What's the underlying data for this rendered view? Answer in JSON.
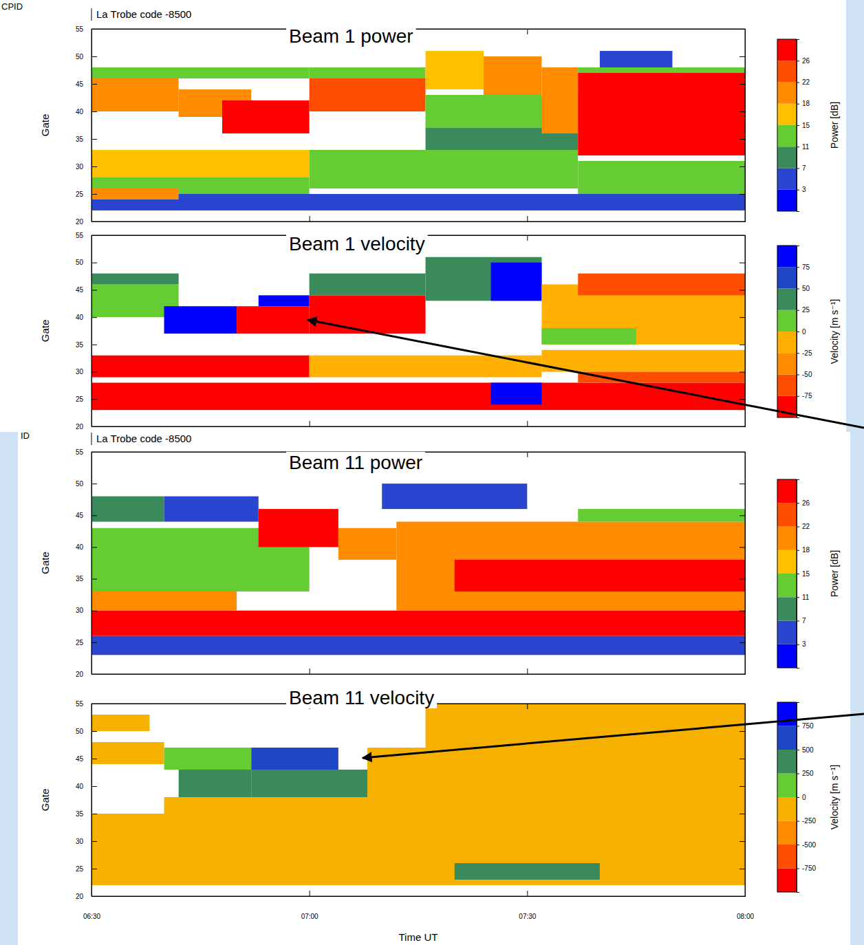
{
  "headers": [
    {
      "id": "CPID",
      "code": "La Trobe code -8500"
    },
    {
      "id": "ID",
      "code": "La Trobe code -8500"
    }
  ],
  "chart_data": [
    {
      "type": "heatmap",
      "title": "Beam 1 power",
      "ylabel": "Gate",
      "xlim": [
        390,
        480
      ],
      "xticks": [
        {
          "value": 390,
          "label": "06:30"
        },
        {
          "value": 420,
          "label": "07:00"
        },
        {
          "value": 450,
          "label": "07:30"
        },
        {
          "value": 480,
          "label": "08:00"
        }
      ],
      "ylim": [
        20,
        55
      ],
      "yticks": [
        20,
        25,
        30,
        35,
        40,
        45,
        50,
        55
      ],
      "tick_labels": "y",
      "colorbar": {
        "label": "Power [dB]",
        "ticks": [
          3,
          7,
          11,
          15,
          18,
          22,
          26
        ],
        "colors": [
          "#0000ff",
          "#2a46d0",
          "#3a8a5c",
          "#66cc33",
          "#ffc000",
          "#ff8c00",
          "#ff4d00",
          "#ff0000"
        ]
      },
      "cells": [
        {
          "t": [
            390,
            480
          ],
          "gate": [
            22,
            25
          ],
          "value": 5
        },
        {
          "t": [
            390,
            420
          ],
          "gate": [
            25,
            28
          ],
          "value": 12
        },
        {
          "t": [
            390,
            402
          ],
          "gate": [
            24,
            26
          ],
          "value": 18
        },
        {
          "t": [
            390,
            420
          ],
          "gate": [
            28,
            33
          ],
          "value": 16
        },
        {
          "t": [
            420,
            457
          ],
          "gate": [
            26,
            33
          ],
          "value": 11
        },
        {
          "t": [
            457,
            480
          ],
          "gate": [
            25,
            31
          ],
          "value": 11
        },
        {
          "t": [
            390,
            420
          ],
          "gate": [
            46,
            48
          ],
          "value": 12
        },
        {
          "t": [
            390,
            402
          ],
          "gate": [
            40,
            46
          ],
          "value": 18
        },
        {
          "t": [
            402,
            412
          ],
          "gate": [
            39,
            44
          ],
          "value": 20
        },
        {
          "t": [
            408,
            420
          ],
          "gate": [
            36,
            42
          ],
          "value": 27
        },
        {
          "t": [
            420,
            436
          ],
          "gate": [
            40,
            46
          ],
          "value": 24
        },
        {
          "t": [
            420,
            436
          ],
          "gate": [
            46,
            48
          ],
          "value": 13
        },
        {
          "t": [
            436,
            457
          ],
          "gate": [
            37,
            43
          ],
          "value": 13
        },
        {
          "t": [
            436,
            457
          ],
          "gate": [
            33,
            37
          ],
          "value": 9
        },
        {
          "t": [
            436,
            444
          ],
          "gate": [
            44,
            51
          ],
          "value": 16
        },
        {
          "t": [
            444,
            452
          ],
          "gate": [
            43,
            50
          ],
          "value": 19
        },
        {
          "t": [
            452,
            457
          ],
          "gate": [
            36,
            48
          ],
          "value": 18
        },
        {
          "t": [
            457,
            480
          ],
          "gate": [
            47,
            48
          ],
          "value": 12
        },
        {
          "t": [
            457,
            480
          ],
          "gate": [
            42,
            47
          ],
          "value": 27
        },
        {
          "t": [
            457,
            480
          ],
          "gate": [
            32,
            42
          ],
          "value": 28
        },
        {
          "t": [
            460,
            470
          ],
          "gate": [
            48,
            51
          ],
          "value": 5
        }
      ]
    },
    {
      "type": "heatmap",
      "title": "Beam 1 velocity",
      "ylabel": "Gate",
      "xlim": [
        390,
        480
      ],
      "xticks": [
        {
          "value": 390,
          "label": "06:30"
        },
        {
          "value": 420,
          "label": "07:00"
        },
        {
          "value": 450,
          "label": "07:30"
        },
        {
          "value": 480,
          "label": "08:00"
        }
      ],
      "ylim": [
        20,
        55
      ],
      "yticks": [
        20,
        25,
        30,
        35,
        40,
        45,
        50,
        55
      ],
      "tick_labels": "y",
      "colorbar": {
        "label": "Velocity [m s⁻¹]",
        "ticks": [
          -75,
          -50,
          -25,
          0,
          25,
          50,
          75
        ],
        "colors": [
          "#ff0000",
          "#ff4d00",
          "#ff8c00",
          "#ffb000",
          "#66cc33",
          "#3a8a5c",
          "#2046c8",
          "#0000ff"
        ]
      },
      "cells": [
        {
          "t": [
            390,
            480
          ],
          "gate": [
            23,
            28
          ],
          "value": -85
        },
        {
          "t": [
            390,
            420
          ],
          "gate": [
            29,
            33
          ],
          "value": -80
        },
        {
          "t": [
            420,
            452
          ],
          "gate": [
            29,
            33
          ],
          "value": -20
        },
        {
          "t": [
            452,
            480
          ],
          "gate": [
            30,
            34
          ],
          "value": -10
        },
        {
          "t": [
            457,
            480
          ],
          "gate": [
            28,
            30
          ],
          "value": -60
        },
        {
          "t": [
            445,
            452
          ],
          "gate": [
            24,
            28
          ],
          "value": 80
        },
        {
          "t": [
            390,
            402
          ],
          "gate": [
            40,
            46
          ],
          "value": 10
        },
        {
          "t": [
            390,
            402
          ],
          "gate": [
            46,
            48
          ],
          "value": 30
        },
        {
          "t": [
            400,
            410
          ],
          "gate": [
            37,
            42
          ],
          "value": 80
        },
        {
          "t": [
            410,
            420
          ],
          "gate": [
            37,
            42
          ],
          "value": -85
        },
        {
          "t": [
            413,
            420
          ],
          "gate": [
            42,
            44
          ],
          "value": 80
        },
        {
          "t": [
            420,
            436
          ],
          "gate": [
            37,
            44
          ],
          "value": -85
        },
        {
          "t": [
            420,
            436
          ],
          "gate": [
            44,
            48
          ],
          "value": 30
        },
        {
          "t": [
            436,
            452
          ],
          "gate": [
            43,
            51
          ],
          "value": 40
        },
        {
          "t": [
            445,
            452
          ],
          "gate": [
            43,
            50
          ],
          "value": 80
        },
        {
          "t": [
            452,
            480
          ],
          "gate": [
            35,
            46
          ],
          "value": -10
        },
        {
          "t": [
            452,
            465
          ],
          "gate": [
            35,
            38
          ],
          "value": 10
        },
        {
          "t": [
            457,
            480
          ],
          "gate": [
            44,
            48
          ],
          "value": -60
        }
      ]
    },
    {
      "type": "heatmap",
      "title": "Beam 11 power",
      "ylabel": "Gate",
      "xlim": [
        390,
        480
      ],
      "xticks": [
        {
          "value": 390,
          "label": "06:30"
        },
        {
          "value": 420,
          "label": "07:00"
        },
        {
          "value": 450,
          "label": "07:30"
        },
        {
          "value": 480,
          "label": "08:00"
        }
      ],
      "ylim": [
        20,
        55
      ],
      "yticks": [
        20,
        25,
        30,
        35,
        40,
        45,
        50,
        55
      ],
      "tick_labels": "y",
      "colorbar": {
        "label": "Power [dB]",
        "ticks": [
          3,
          7,
          11,
          15,
          18,
          22,
          26
        ],
        "colors": [
          "#0000ff",
          "#2a46d0",
          "#3a8a5c",
          "#66cc33",
          "#ffc000",
          "#ff8c00",
          "#ff4d00",
          "#ff0000"
        ]
      },
      "cells": [
        {
          "t": [
            390,
            480
          ],
          "gate": [
            23,
            26
          ],
          "value": 6
        },
        {
          "t": [
            390,
            480
          ],
          "gate": [
            26,
            30
          ],
          "value": 27
        },
        {
          "t": [
            390,
            410
          ],
          "gate": [
            30,
            33
          ],
          "value": 20
        },
        {
          "t": [
            390,
            420
          ],
          "gate": [
            33,
            43
          ],
          "value": 12
        },
        {
          "t": [
            390,
            400
          ],
          "gate": [
            44,
            48
          ],
          "value": 8
        },
        {
          "t": [
            400,
            413
          ],
          "gate": [
            44,
            48
          ],
          "value": 4
        },
        {
          "t": [
            413,
            424
          ],
          "gate": [
            40,
            46
          ],
          "value": 27
        },
        {
          "t": [
            424,
            432
          ],
          "gate": [
            38,
            43
          ],
          "value": 20
        },
        {
          "t": [
            432,
            480
          ],
          "gate": [
            30,
            44
          ],
          "value": 20
        },
        {
          "t": [
            440,
            480
          ],
          "gate": [
            33,
            38
          ],
          "value": 26
        },
        {
          "t": [
            430,
            450
          ],
          "gate": [
            46,
            50
          ],
          "value": 6
        },
        {
          "t": [
            457,
            480
          ],
          "gate": [
            44,
            46
          ],
          "value": 12
        }
      ]
    },
    {
      "type": "heatmap",
      "title": "Beam 11 velocity",
      "ylabel": "Gate",
      "xlabel": "Time UT",
      "xlim": [
        390,
        480
      ],
      "xticks": [
        {
          "value": 390,
          "label": "06:30"
        },
        {
          "value": 420,
          "label": "07:00"
        },
        {
          "value": 450,
          "label": "07:30"
        },
        {
          "value": 480,
          "label": "08:00"
        }
      ],
      "ylim": [
        20,
        55
      ],
      "yticks": [
        20,
        25,
        30,
        35,
        40,
        45,
        50,
        55
      ],
      "colorbar": {
        "label": "Velocity [m s⁻¹]",
        "ticks": [
          -750,
          -500,
          -250,
          0,
          250,
          500,
          750
        ],
        "colors": [
          "#ff0000",
          "#ff4d00",
          "#ff8c00",
          "#f5b000",
          "#66cc33",
          "#3a8a5c",
          "#2046c8",
          "#0000ff"
        ]
      },
      "cells": [
        {
          "t": [
            390,
            480
          ],
          "gate": [
            22,
            35
          ],
          "value": -100
        },
        {
          "t": [
            400,
            480
          ],
          "gate": [
            35,
            38
          ],
          "value": -100
        },
        {
          "t": [
            428,
            480
          ],
          "gate": [
            35,
            47
          ],
          "value": -100
        },
        {
          "t": [
            436,
            480
          ],
          "gate": [
            47,
            55
          ],
          "value": -100
        },
        {
          "t": [
            390,
            400
          ],
          "gate": [
            44,
            48
          ],
          "value": -100
        },
        {
          "t": [
            390,
            398
          ],
          "gate": [
            50,
            53
          ],
          "value": -100
        },
        {
          "t": [
            402,
            412
          ],
          "gate": [
            38,
            43
          ],
          "value": 350
        },
        {
          "t": [
            412,
            428
          ],
          "gate": [
            38,
            43
          ],
          "value": 350
        },
        {
          "t": [
            400,
            412
          ],
          "gate": [
            43,
            47
          ],
          "value": 100
        },
        {
          "t": [
            412,
            424
          ],
          "gate": [
            43,
            47
          ],
          "value": 600
        },
        {
          "t": [
            440,
            460
          ],
          "gate": [
            23,
            26
          ],
          "value": 300
        }
      ]
    }
  ]
}
